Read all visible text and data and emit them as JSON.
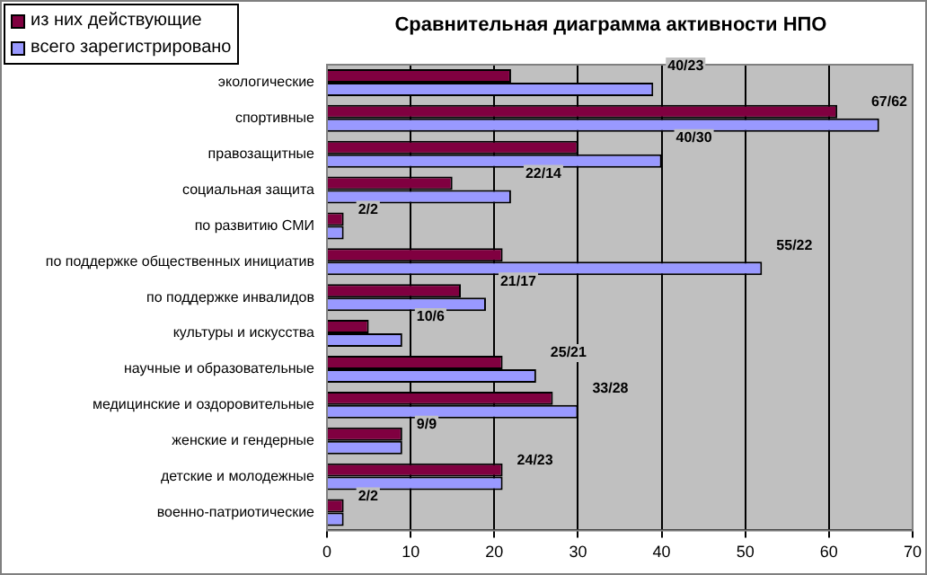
{
  "chart_data": {
    "type": "bar",
    "orientation": "horizontal",
    "title": "Сравнительная диаграмма активности НПО",
    "categories": [
      "экологические",
      "спортивные",
      "правозащитные",
      "социальная защита",
      "по развитию СМИ",
      "по поддержке общественных инициатив",
      "по поддержке инвалидов",
      "культуры и искусства",
      "научные и образовательные",
      "медицинские и оздоровительные",
      "женские и гендерные",
      "детские и молодежные",
      "военно-патриотические"
    ],
    "series": [
      {
        "name": "из них действующие",
        "color": "#800040",
        "values": [
          22,
          61,
          30,
          15,
          2,
          21,
          16,
          5,
          21,
          27,
          9,
          21,
          2
        ]
      },
      {
        "name": "всего зарегистрировано",
        "color": "#9999ff",
        "values": [
          39,
          66,
          40,
          22,
          2,
          52,
          19,
          9,
          25,
          30,
          9,
          21,
          2
        ]
      }
    ],
    "annotations": [
      "40/23",
      "67/62",
      "40/30",
      "22/14",
      "2/2",
      "55/22",
      "21/17",
      "10/6",
      "25/21",
      "33/28",
      "9/9",
      "24/23",
      "2/2"
    ],
    "xlim": [
      0,
      70
    ],
    "xticks": [
      0,
      10,
      20,
      30,
      40,
      50,
      60,
      70
    ],
    "grid": "x",
    "legend": "top left"
  }
}
